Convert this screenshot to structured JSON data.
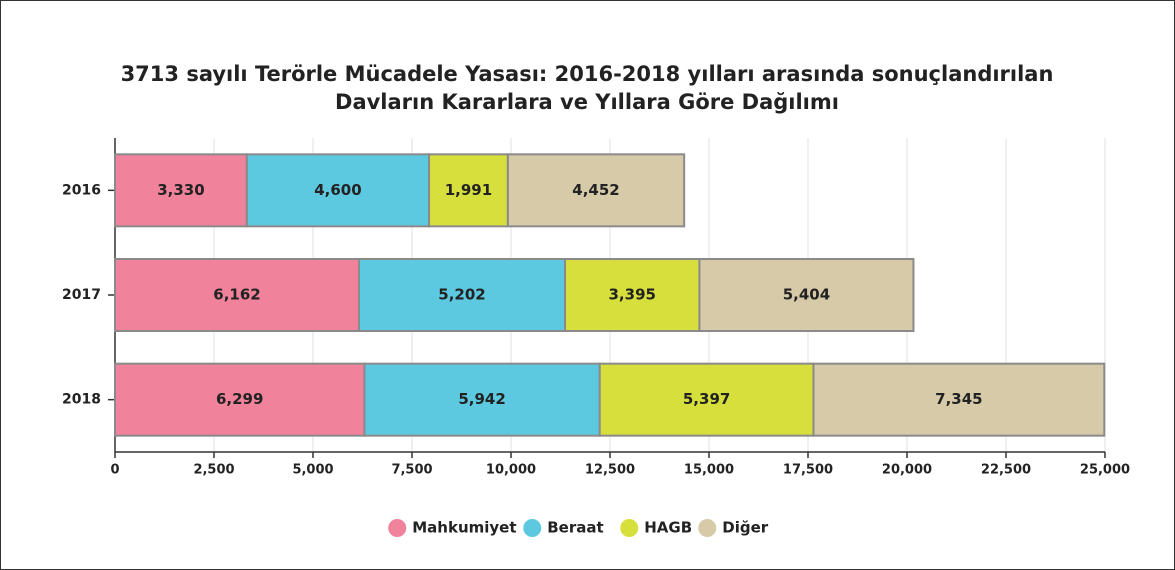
{
  "chart_data": {
    "type": "stacked-barh",
    "title": [
      "3713 sayılı Terörle Mücadele Yasası: 2016-2018 yılları arasında sonuçlandırılan",
      "Davların Kararlara ve Yıllara Göre Dağılımı"
    ],
    "categories": [
      "2016",
      "2017",
      "2018"
    ],
    "series": [
      {
        "name": "Mahkumiyet",
        "color": "#f0829b",
        "values": [
          3330,
          6162,
          6299
        ],
        "value_labels": [
          "3,330",
          "6,162",
          "6,299"
        ]
      },
      {
        "name": "Beraat",
        "color": "#5dc9e1",
        "values": [
          4600,
          5202,
          5942
        ],
        "value_labels": [
          "4,600",
          "5,202",
          "5,942"
        ]
      },
      {
        "name": "HAGB",
        "color": "#d7df3c",
        "values": [
          1991,
          3395,
          5397
        ],
        "value_labels": [
          "1,991",
          "3,395",
          "5,397"
        ]
      },
      {
        "name": "Diğer",
        "color": "#d6caa9",
        "values": [
          4452,
          5404,
          7345
        ],
        "value_labels": [
          "4,452",
          "5,404",
          "7,345"
        ]
      }
    ],
    "xlim": [
      0,
      25000
    ],
    "xticks": [
      0,
      {
        "value": 2500,
        "label": "2,500"
      },
      {
        "value": 5000,
        "label": "5,000"
      },
      {
        "value": 7500,
        "label": "7,500"
      },
      {
        "value": 10000,
        "label": "10,000"
      },
      {
        "value": 12500,
        "label": "12,500"
      },
      {
        "value": 15000,
        "label": "15,000"
      },
      {
        "value": 17500,
        "label": "17,500"
      },
      {
        "value": 20000,
        "label": "20,000"
      },
      {
        "value": 22500,
        "label": "22,500"
      },
      {
        "value": 25000,
        "label": "25,000"
      }
    ],
    "grid": true,
    "legend": "bottom"
  }
}
